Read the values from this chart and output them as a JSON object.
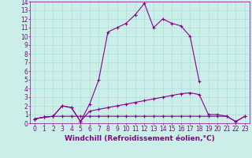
{
  "xlabel": "Windchill (Refroidissement éolien,°C)",
  "x": [
    0,
    1,
    2,
    3,
    4,
    5,
    6,
    7,
    8,
    9,
    10,
    11,
    12,
    13,
    14,
    15,
    16,
    17,
    18,
    19,
    20,
    21,
    22,
    23
  ],
  "line1": [
    0.5,
    0.7,
    0.8,
    2.0,
    1.8,
    0.2,
    2.2,
    5.0,
    10.5,
    11.0,
    11.5,
    12.5,
    13.8,
    11.0,
    12.0,
    11.5,
    11.2,
    10.0,
    4.8,
    null,
    null,
    null,
    null,
    null
  ],
  "line2": [
    0.5,
    0.7,
    0.8,
    2.0,
    1.8,
    0.2,
    1.4,
    1.6,
    1.8,
    2.0,
    2.2,
    2.4,
    2.6,
    2.8,
    3.0,
    3.2,
    3.4,
    3.5,
    3.3,
    1.0,
    1.0,
    0.8,
    0.2,
    0.8
  ],
  "line3": [
    0.5,
    0.7,
    0.8,
    0.8,
    0.8,
    0.8,
    0.8,
    0.8,
    0.8,
    0.8,
    0.8,
    0.8,
    0.8,
    0.8,
    0.8,
    0.8,
    0.8,
    0.8,
    0.8,
    0.8,
    0.8,
    0.8,
    0.2,
    0.8
  ],
  "ylim": [
    0,
    14
  ],
  "xlim": [
    -0.5,
    23.5
  ],
  "yticks": [
    0,
    1,
    2,
    3,
    4,
    5,
    6,
    7,
    8,
    9,
    10,
    11,
    12,
    13,
    14
  ],
  "xticks": [
    0,
    1,
    2,
    3,
    4,
    5,
    6,
    7,
    8,
    9,
    10,
    11,
    12,
    13,
    14,
    15,
    16,
    17,
    18,
    19,
    20,
    21,
    22,
    23
  ],
  "line_color": "#8B008B",
  "bg_color": "#cceee8",
  "grid_color": "#aaddda",
  "tick_label_size": 5.5,
  "xlabel_size": 6.5
}
